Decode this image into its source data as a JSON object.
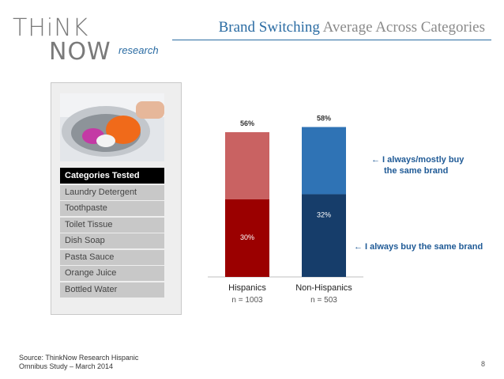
{
  "logo": {
    "think": "THiNK",
    "now": "NOW",
    "research": "research"
  },
  "title": {
    "accent": "Brand Switching",
    "rest": " Average Across Categories"
  },
  "categories_panel": {
    "header": "Categories Tested",
    "items": [
      "Laundry Detergent",
      "Toothpaste",
      "Toilet Tissue",
      "Dish Soap",
      "Pasta Sauce",
      "Orange Juice",
      "Bottled Water"
    ]
  },
  "chart_data": {
    "type": "bar",
    "stacked": true,
    "categories": [
      "Hispanics",
      "Non-Hispanics"
    ],
    "sample_sizes": [
      "n = 1003",
      "n = 503"
    ],
    "series": [
      {
        "name": "I always buy the same brand",
        "values": [
          30,
          32
        ],
        "labels": [
          "30%",
          "32%"
        ]
      },
      {
        "name": "I always/mostly buy the same brand",
        "values": [
          26,
          26
        ]
      }
    ],
    "totals": [
      56,
      58
    ],
    "total_labels": [
      "56%",
      "58%"
    ],
    "ylim": [
      0,
      60
    ],
    "colors": {
      "hispanics_bottom": "#9b0000",
      "hispanics_top": "#c96262",
      "nonhispanics_bottom": "#163d6a",
      "nonhispanics_top": "#2f73b5"
    },
    "legend": [
      {
        "arrow": "←",
        "text_lines": [
          "I always/mostly buy",
          "the same brand"
        ]
      },
      {
        "arrow": "←",
        "text_lines": [
          "I always buy the same brand"
        ]
      }
    ]
  },
  "footer": {
    "source_lines": [
      "Source: ThinkNow Research Hispanic",
      "Omnibus Study – March 2014"
    ],
    "page_number": "8"
  }
}
